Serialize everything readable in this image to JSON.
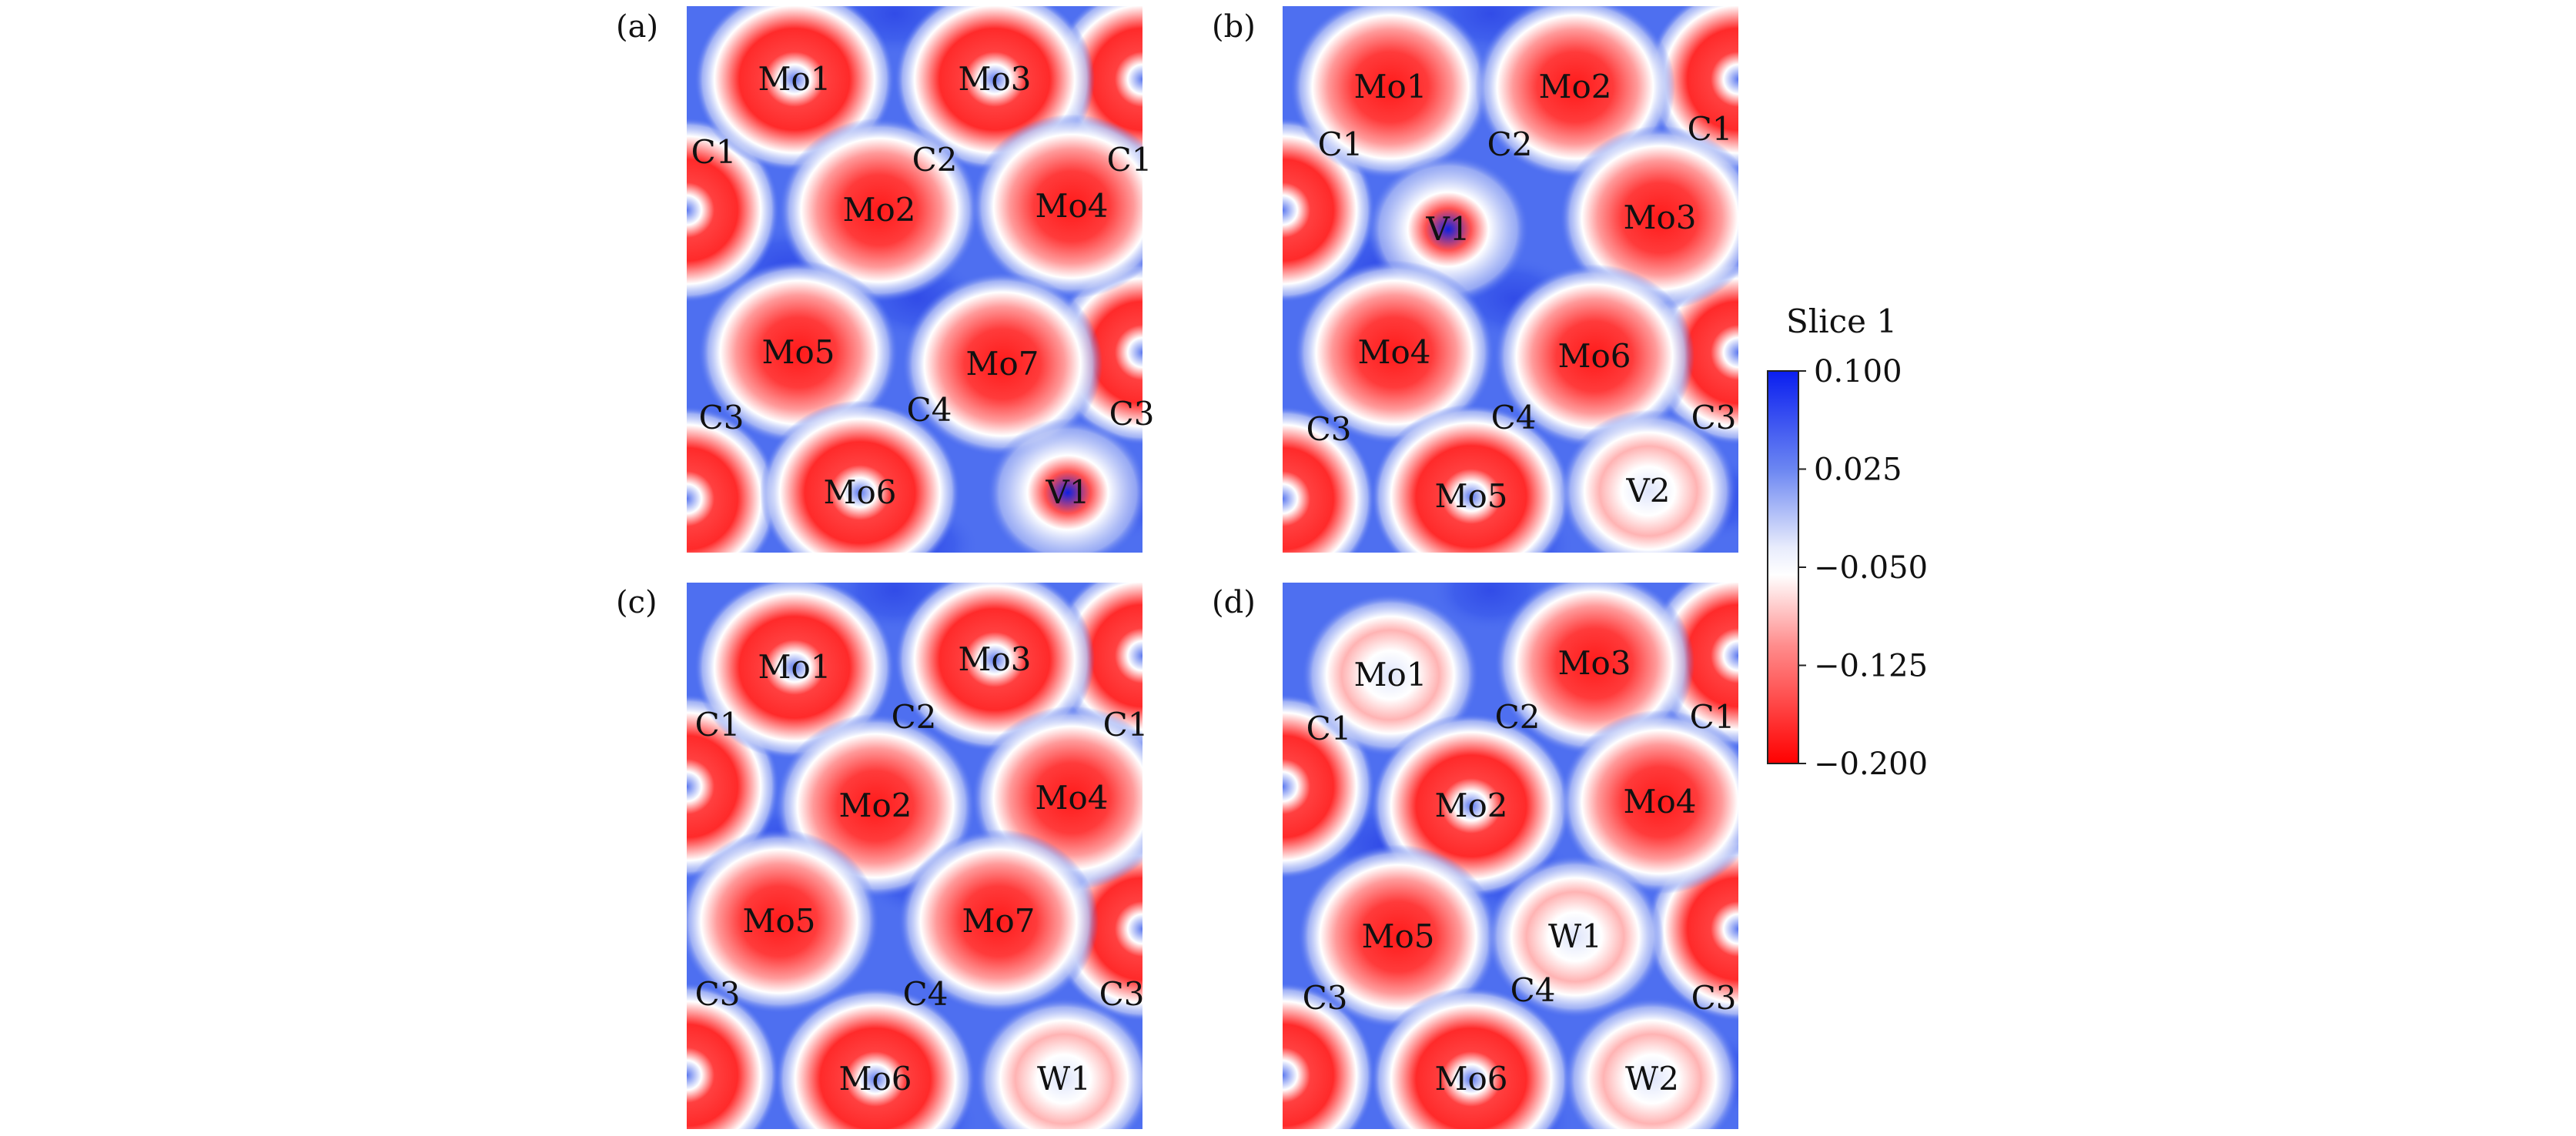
{
  "colorbar": {
    "title": "Slice 1",
    "ticks": [
      "0.100",
      "0.025",
      "−0.050",
      "−0.125",
      "−0.200"
    ],
    "range": [
      -0.2,
      0.1
    ],
    "colors": {
      "max": "#0a1ef0",
      "mid": "#ffffff",
      "min": "#ff0000",
      "background": "#4e6ff0"
    }
  },
  "panels": [
    {
      "tag": "(a)",
      "atoms": [
        {
          "name": "Mo1",
          "kind": "ring"
        },
        {
          "name": "Mo3",
          "kind": "ring"
        },
        {
          "name": "C1",
          "kind": "label"
        },
        {
          "name": "C2",
          "kind": "label"
        },
        {
          "name": "C1",
          "kind": "label"
        },
        {
          "name": "Mo2",
          "kind": "blob"
        },
        {
          "name": "Mo4",
          "kind": "blob"
        },
        {
          "name": "Mo5",
          "kind": "blob"
        },
        {
          "name": "Mo7",
          "kind": "blob"
        },
        {
          "name": "C3",
          "kind": "label"
        },
        {
          "name": "C4",
          "kind": "label"
        },
        {
          "name": "C3",
          "kind": "label"
        },
        {
          "name": "Mo6",
          "kind": "ring"
        },
        {
          "name": "V1",
          "kind": "dopant"
        }
      ]
    },
    {
      "tag": "(b)",
      "atoms": [
        {
          "name": "Mo1",
          "kind": "blob"
        },
        {
          "name": "Mo2",
          "kind": "blob"
        },
        {
          "name": "C1",
          "kind": "label"
        },
        {
          "name": "C2",
          "kind": "label"
        },
        {
          "name": "C1",
          "kind": "label"
        },
        {
          "name": "V1",
          "kind": "dopant"
        },
        {
          "name": "Mo3",
          "kind": "blob"
        },
        {
          "name": "Mo4",
          "kind": "blob"
        },
        {
          "name": "Mo6",
          "kind": "blob"
        },
        {
          "name": "C3",
          "kind": "label"
        },
        {
          "name": "C4",
          "kind": "label"
        },
        {
          "name": "C3",
          "kind": "label"
        },
        {
          "name": "Mo5",
          "kind": "ring"
        },
        {
          "name": "V2",
          "kind": "weak"
        }
      ]
    },
    {
      "tag": "(c)",
      "atoms": [
        {
          "name": "Mo1",
          "kind": "ring"
        },
        {
          "name": "Mo3",
          "kind": "ring"
        },
        {
          "name": "C1",
          "kind": "label"
        },
        {
          "name": "C2",
          "kind": "label"
        },
        {
          "name": "C1",
          "kind": "label"
        },
        {
          "name": "Mo2",
          "kind": "blob"
        },
        {
          "name": "Mo4",
          "kind": "blob"
        },
        {
          "name": "Mo5",
          "kind": "blob"
        },
        {
          "name": "Mo7",
          "kind": "blob"
        },
        {
          "name": "C3",
          "kind": "label"
        },
        {
          "name": "C4",
          "kind": "label"
        },
        {
          "name": "C3",
          "kind": "label"
        },
        {
          "name": "Mo6",
          "kind": "ring"
        },
        {
          "name": "W1",
          "kind": "weak"
        }
      ]
    },
    {
      "tag": "(d)",
      "atoms": [
        {
          "name": "Mo1",
          "kind": "weak"
        },
        {
          "name": "Mo3",
          "kind": "blob"
        },
        {
          "name": "C1",
          "kind": "label"
        },
        {
          "name": "C2",
          "kind": "label"
        },
        {
          "name": "C1",
          "kind": "label"
        },
        {
          "name": "Mo2",
          "kind": "ring"
        },
        {
          "name": "Mo4",
          "kind": "blob"
        },
        {
          "name": "Mo5",
          "kind": "blob"
        },
        {
          "name": "W1",
          "kind": "weak"
        },
        {
          "name": "C3",
          "kind": "label"
        },
        {
          "name": "C4",
          "kind": "label"
        },
        {
          "name": "C3",
          "kind": "label"
        },
        {
          "name": "Mo6",
          "kind": "ring"
        },
        {
          "name": "W2",
          "kind": "weak"
        }
      ]
    }
  ]
}
